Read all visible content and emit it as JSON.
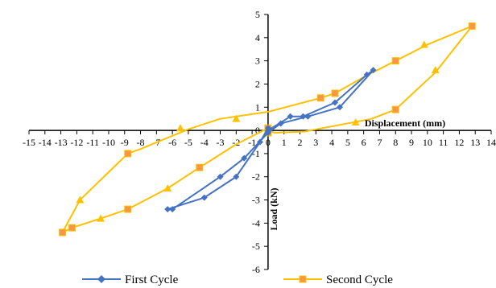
{
  "chart_data": {
    "type": "scatter",
    "xlabel": "Displacement (mm)",
    "ylabel": "Load (kN)",
    "xlim": [
      -15,
      14
    ],
    "ylim": [
      -6,
      5
    ],
    "x_ticks": [
      -15,
      -14,
      -13,
      -12,
      -11,
      -10,
      -9,
      -8,
      -7,
      -6,
      -5,
      -4,
      -3,
      -2,
      -1,
      0,
      1,
      2,
      3,
      4,
      5,
      6,
      7,
      8,
      9,
      10,
      11,
      12,
      13,
      14
    ],
    "y_ticks": [
      -6,
      -5,
      -4,
      -3,
      -2,
      -1,
      0,
      1,
      2,
      3,
      4,
      5
    ],
    "grid": false,
    "legend_position": "bottom",
    "series": [
      {
        "name": "First Cycle",
        "color": "#4472C4",
        "marker": "diamond",
        "points": [
          [
            0,
            0
          ],
          [
            1.4,
            0.6
          ],
          [
            2.2,
            0.6
          ],
          [
            4.2,
            1.2
          ],
          [
            6.2,
            2.4
          ],
          [
            6.6,
            2.6
          ],
          [
            4.5,
            1.0
          ],
          [
            2.5,
            0.6
          ],
          [
            0.8,
            0.3
          ],
          [
            0,
            -0.1
          ],
          [
            -1.5,
            -1.2
          ],
          [
            -3.0,
            -2.0
          ],
          [
            -6.0,
            -3.4
          ],
          [
            -6.3,
            -3.4
          ],
          [
            -4.0,
            -2.9
          ],
          [
            -2.0,
            -2.0
          ],
          [
            -0.5,
            -0.5
          ],
          [
            0,
            0.1
          ]
        ]
      },
      {
        "name": "Second Cycle",
        "color": "#FFC000",
        "marker": "square",
        "arrow_color": "#FFC000",
        "points": [
          [
            0,
            0
          ],
          [
            0.4,
            -0.1
          ],
          [
            2.3,
            -0.05
          ],
          [
            6.5,
            0.5
          ],
          [
            8.0,
            0.9
          ],
          [
            10.5,
            2.5
          ],
          [
            12.8,
            4.5
          ],
          [
            10.0,
            3.7
          ],
          [
            8.0,
            3.0
          ],
          [
            6.0,
            2.3
          ],
          [
            4.2,
            1.6
          ],
          [
            3.3,
            1.4
          ],
          [
            0,
            0.8
          ],
          [
            -3.0,
            0.5
          ],
          [
            -5.0,
            0.05
          ],
          [
            -8.0,
            -0.8
          ],
          [
            -8.8,
            -1.0
          ],
          [
            -11.8,
            -3.0
          ],
          [
            -12.9,
            -4.4
          ],
          [
            -12.3,
            -4.2
          ],
          [
            -10.5,
            -3.8
          ],
          [
            -8.8,
            -3.4
          ],
          [
            -6.3,
            -2.5
          ],
          [
            -4.3,
            -1.6
          ],
          [
            -2.0,
            -0.6
          ],
          [
            0,
            0.1
          ]
        ],
        "marker_points": [
          [
            0,
            0.1
          ],
          [
            0,
            -0.1
          ],
          [
            3.3,
            1.4
          ],
          [
            4.2,
            1.6
          ],
          [
            8.0,
            3.0
          ],
          [
            8.0,
            0.9
          ],
          [
            12.8,
            4.5
          ],
          [
            -12.9,
            -4.4
          ],
          [
            -12.3,
            -4.2
          ],
          [
            -8.8,
            -3.4
          ],
          [
            -8.8,
            -1.0
          ],
          [
            -4.3,
            -1.6
          ]
        ],
        "arrow_points": [
          [
            5.5,
            0.35
          ],
          [
            10.5,
            2.6
          ],
          [
            9.8,
            3.7
          ],
          [
            -5.5,
            0.1
          ],
          [
            -11.8,
            -3.0
          ],
          [
            -10.5,
            -3.8
          ],
          [
            -6.3,
            -2.5
          ],
          [
            -2.0,
            0.5
          ]
        ]
      }
    ]
  }
}
